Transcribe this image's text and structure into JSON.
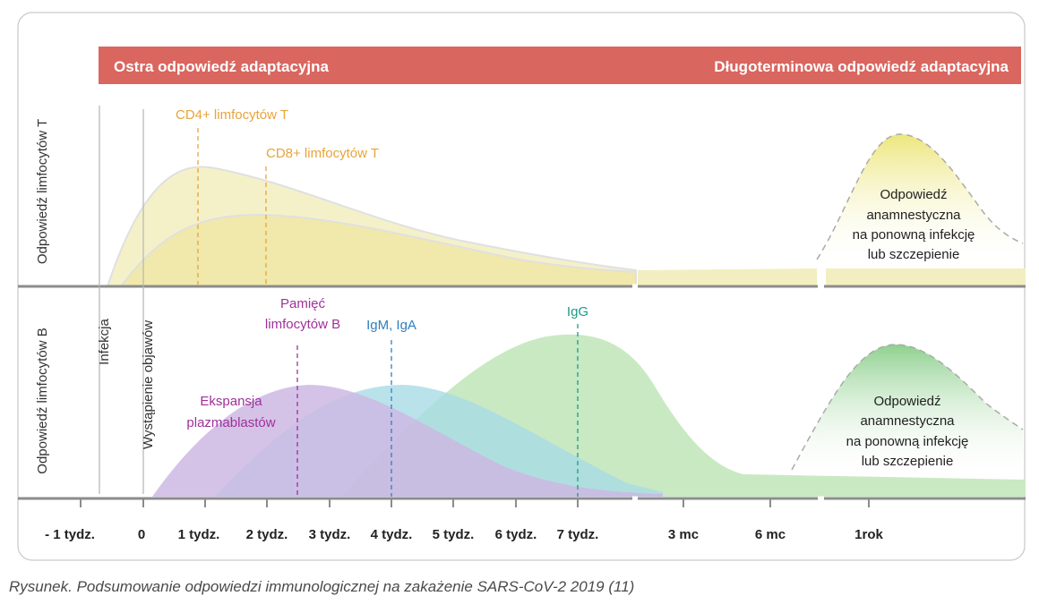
{
  "banner": {
    "acute_label": "Ostra odpowiedź adaptacyjna",
    "long_term_label": "Długoterminowa odpowiedź adaptacyjna",
    "color": "#d9665f"
  },
  "t_panel": {
    "axis_label": "Odpowiedź limfocytów T",
    "cd4_label": "CD4+ limfocytów T",
    "cd8_label": "CD8+ limfocytów T",
    "memory_line1": "Odpowiedź",
    "memory_line2": "anamnestyczna",
    "memory_line3": "na  ponowną infekcję",
    "memory_line4": "lub szczepienie"
  },
  "b_panel": {
    "axis_label": "Odpowiedź limfocytów B",
    "infection_label": "Infekcja",
    "symptoms_label": "Wystąpienie objawów",
    "plasmablast_line1": "Ekspansja",
    "plasmablast_line2": "plazmablastów",
    "memory_b_line1": "Pamięć",
    "memory_b_line2": "limfocytów B",
    "igm_label": "IgM, IgA",
    "igg_label": "IgG",
    "memory_line1": "Odpowiedź",
    "memory_line2": "anamnestyczna",
    "memory_line3": "na  ponowną infekcję",
    "memory_line4": "lub szczepienie"
  },
  "x_axis": {
    "ticks": [
      "- 1 tydz.",
      "0",
      "1 tydz.",
      "2 tydz.",
      "3 tydz.",
      "4 tydz.",
      "5 tydz.",
      "6 tydz.",
      "7 tydz.",
      "3 mc",
      "6 mc",
      "1rok"
    ]
  },
  "colors": {
    "cd4": "#f2eec0",
    "cd8": "#efe6a0",
    "plasmablast": "#cdb9e3",
    "igm": "#a9dbe6",
    "igg": "#c9e9c2",
    "memory_t": "#ece67c",
    "memory_b": "#8fd08e",
    "t_label": "#e8a33a",
    "memory_b_label": "#a0309a",
    "igm_label": "#2f7fc0",
    "igg_label": "#1a9a8a"
  },
  "caption": "Rysunek. Podsumowanie odpowiedzi immunologicznej na zakażenie SARS-CoV-2 2019 (11)"
}
